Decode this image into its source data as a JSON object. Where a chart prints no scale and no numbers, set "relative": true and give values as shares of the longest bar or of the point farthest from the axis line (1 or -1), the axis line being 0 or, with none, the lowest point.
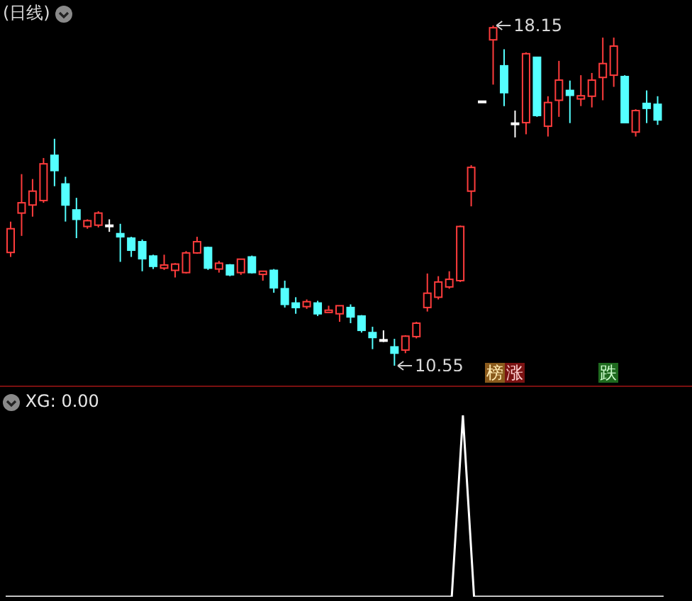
{
  "chart_data": [
    {
      "type": "candlestick",
      "title": "(日线)",
      "tick_labels": false,
      "categories": [
        null,
        null,
        null,
        null,
        null,
        null,
        null,
        null,
        null,
        null,
        null,
        null,
        null,
        null,
        null,
        null,
        null,
        null,
        null,
        null,
        null,
        null,
        null,
        null,
        null,
        null,
        null,
        null,
        null,
        null,
        null,
        null,
        null,
        null,
        null,
        null,
        null,
        null,
        null,
        null,
        null,
        null,
        null,
        null,
        null,
        null,
        null,
        null,
        null,
        null,
        null,
        null,
        null,
        null,
        null,
        null,
        null,
        null,
        null,
        null
      ],
      "ohlc": [
        [
          13.08,
          13.77,
          12.98,
          13.61
        ],
        [
          13.96,
          14.83,
          13.45,
          14.19
        ],
        [
          14.14,
          14.72,
          13.88,
          14.45
        ],
        [
          14.24,
          15.19,
          14.19,
          15.06
        ],
        [
          15.25,
          15.62,
          14.56,
          14.91
        ],
        [
          14.61,
          14.77,
          13.77,
          14.14
        ],
        [
          14.03,
          14.3,
          13.4,
          13.82
        ],
        [
          13.66,
          13.82,
          13.61,
          13.79
        ],
        [
          13.69,
          14.0,
          13.64,
          13.96
        ],
        [
          13.69,
          13.82,
          13.54,
          13.69
        ],
        [
          13.5,
          13.72,
          12.87,
          13.43
        ],
        [
          13.4,
          13.43,
          12.98,
          13.13
        ],
        [
          13.32,
          13.37,
          12.66,
          12.94
        ],
        [
          13.0,
          13.03,
          12.71,
          12.77
        ],
        [
          12.73,
          13.03,
          12.69,
          12.8
        ],
        [
          12.68,
          12.84,
          12.52,
          12.82
        ],
        [
          12.63,
          13.11,
          12.61,
          13.07
        ],
        [
          13.07,
          13.43,
          13.05,
          13.32
        ],
        [
          13.19,
          13.21,
          12.69,
          12.73
        ],
        [
          12.71,
          12.89,
          12.63,
          12.84
        ],
        [
          12.8,
          12.82,
          12.55,
          12.58
        ],
        [
          12.63,
          12.94,
          12.58,
          12.93
        ],
        [
          12.98,
          13.01,
          12.61,
          12.63
        ],
        [
          12.59,
          12.66,
          12.45,
          12.66
        ],
        [
          12.68,
          12.71,
          12.18,
          12.29
        ],
        [
          12.27,
          12.45,
          11.85,
          11.92
        ],
        [
          11.95,
          12.08,
          11.71,
          11.85
        ],
        [
          11.87,
          12.03,
          11.82,
          11.98
        ],
        [
          11.95,
          12.0,
          11.66,
          11.71
        ],
        [
          11.74,
          11.89,
          11.74,
          11.79
        ],
        [
          11.71,
          11.89,
          11.53,
          11.89
        ],
        [
          11.85,
          11.92,
          11.5,
          11.64
        ],
        [
          11.66,
          11.68,
          11.29,
          11.34
        ],
        [
          11.29,
          11.42,
          10.92,
          11.18
        ],
        [
          11.13,
          11.34,
          11.08,
          11.13
        ],
        [
          10.97,
          11.15,
          10.55,
          10.83
        ],
        [
          10.9,
          11.23,
          10.83,
          11.21
        ],
        [
          11.2,
          11.53,
          11.16,
          11.5
        ],
        [
          11.85,
          12.61,
          11.76,
          12.17
        ],
        [
          12.08,
          12.55,
          12.03,
          12.42
        ],
        [
          12.31,
          12.66,
          12.27,
          12.48
        ],
        [
          12.45,
          13.68,
          12.42,
          13.66
        ],
        [
          14.45,
          15.03,
          14.11,
          14.98
        ],
        [
          16.46,
          16.46,
          16.46,
          16.46
        ],
        [
          17.83,
          18.15,
          16.83,
          18.1
        ],
        [
          17.25,
          17.62,
          16.35,
          16.65
        ],
        [
          15.97,
          16.25,
          15.65,
          15.97
        ],
        [
          15.98,
          17.55,
          15.72,
          17.52
        ],
        [
          17.44,
          17.44,
          16.11,
          16.14
        ],
        [
          15.9,
          16.57,
          15.67,
          16.43
        ],
        [
          16.48,
          17.36,
          16.11,
          16.93
        ],
        [
          16.7,
          16.92,
          15.97,
          16.59
        ],
        [
          16.51,
          17.04,
          16.35,
          16.58
        ],
        [
          16.57,
          17.09,
          16.32,
          16.93
        ],
        [
          16.99,
          17.88,
          16.48,
          17.3
        ],
        [
          17.04,
          17.88,
          16.78,
          17.69
        ],
        [
          17.01,
          17.04,
          15.98,
          15.98
        ],
        [
          15.77,
          16.28,
          15.67,
          16.25
        ],
        [
          16.41,
          16.7,
          15.97,
          16.3
        ],
        [
          16.39,
          16.57,
          15.93,
          16.04
        ]
      ],
      "colors": [
        "#ff3c3c",
        "#ff3c3c",
        "#ff3c3c",
        "#ff3c3c",
        "#54ffff",
        "#54ffff",
        "#54ffff",
        "#ff3c3c",
        "#ff3c3c",
        "#ffffff",
        "#54ffff",
        "#54ffff",
        "#54ffff",
        "#54ffff",
        "#ff3c3c",
        "#ff3c3c",
        "#ff3c3c",
        "#ff3c3c",
        "#54ffff",
        "#ff3c3c",
        "#54ffff",
        "#ff3c3c",
        "#54ffff",
        "#ff3c3c",
        "#54ffff",
        "#54ffff",
        "#54ffff",
        "#ff3c3c",
        "#54ffff",
        "#ff3c3c",
        "#ff3c3c",
        "#54ffff",
        "#54ffff",
        "#54ffff",
        "#ffffff",
        "#54ffff",
        "#ff3c3c",
        "#ff3c3c",
        "#ff3c3c",
        "#ff3c3c",
        "#ff3c3c",
        "#ff3c3c",
        "#ff3c3c",
        "#ffffff",
        "#ff3c3c",
        "#54ffff",
        "#ffffff",
        "#ff3c3c",
        "#54ffff",
        "#ff3c3c",
        "#ff3c3c",
        "#54ffff",
        "#ff3c3c",
        "#ff3c3c",
        "#ff3c3c",
        "#ff3c3c",
        "#54ffff",
        "#ff3c3c",
        "#54ffff",
        "#54ffff"
      ],
      "annotations": [
        "18.15",
        "10.55",
        "榜",
        "涨",
        "跌"
      ]
    },
    {
      "type": "line",
      "title": "XG: 0.00",
      "relative": true,
      "tick_labels": false,
      "categories": [
        null,
        null,
        null,
        null,
        null,
        null,
        null,
        null,
        null,
        null,
        null,
        null,
        null,
        null,
        null,
        null,
        null,
        null,
        null,
        null,
        null,
        null,
        null,
        null,
        null,
        null,
        null,
        null,
        null,
        null,
        null,
        null,
        null,
        null,
        null,
        null,
        null,
        null,
        null,
        null,
        null,
        null,
        null,
        null,
        null,
        null,
        null,
        null,
        null,
        null,
        null,
        null,
        null,
        null,
        null,
        null,
        null,
        null,
        null,
        null
      ],
      "series": [
        {
          "color": "#ffffff",
          "values": [
            0,
            0,
            0,
            0,
            0,
            0,
            0,
            0,
            0,
            0,
            0,
            0,
            0,
            0,
            0,
            0,
            0,
            0,
            0,
            0,
            0,
            0,
            0,
            0,
            0,
            0,
            0,
            0,
            0,
            0,
            0,
            0,
            0,
            0,
            0,
            0,
            0,
            0,
            0,
            0,
            0,
            1,
            0,
            0,
            0,
            0,
            0,
            0,
            0,
            0,
            0,
            0,
            0,
            0,
            0,
            0,
            0,
            0,
            0,
            0
          ]
        }
      ]
    }
  ]
}
